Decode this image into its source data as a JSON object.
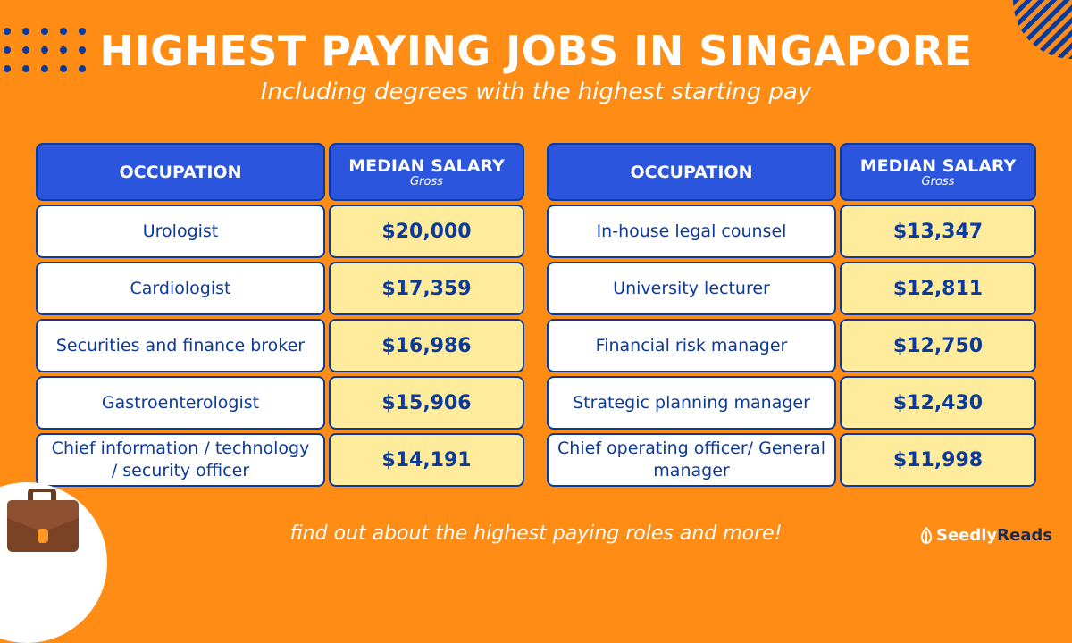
{
  "header": {
    "title": "HIGHEST PAYING JOBS IN SINGAPORE",
    "subtitle": "Including degrees with the highest starting pay"
  },
  "tables": [
    {
      "col_occupation": "OCCUPATION",
      "col_salary": "MEDIAN SALARY",
      "col_salary_note": "Gross",
      "rows": [
        {
          "occupation": "Urologist",
          "salary": "$20,000"
        },
        {
          "occupation": "Cardiologist",
          "salary": "$17,359"
        },
        {
          "occupation": "Securities and finance broker",
          "salary": "$16,986"
        },
        {
          "occupation": "Gastroenterologist",
          "salary": "$15,906"
        },
        {
          "occupation": "Chief information / technology / security officer",
          "salary": "$14,191"
        }
      ]
    },
    {
      "col_occupation": "OCCUPATION",
      "col_salary": "MEDIAN SALARY",
      "col_salary_note": "Gross",
      "rows": [
        {
          "occupation": "In-house legal counsel",
          "salary": "$13,347"
        },
        {
          "occupation": "University lecturer",
          "salary": "$12,811"
        },
        {
          "occupation": "Financial risk manager",
          "salary": "$12,750"
        },
        {
          "occupation": "Strategic planning manager",
          "salary": "$12,430"
        },
        {
          "occupation": "Chief operating officer/ General manager",
          "salary": "$11,998"
        }
      ]
    }
  ],
  "footer": {
    "text": "find out about the highest paying roles and more!"
  },
  "logo": {
    "part1": "Seedly",
    "part2": "Reads"
  },
  "colors": {
    "background": "#ff8c14",
    "header_cell": "#2b55dd",
    "salary_cell": "#ffeb9c",
    "text": "#0b3a9a"
  }
}
